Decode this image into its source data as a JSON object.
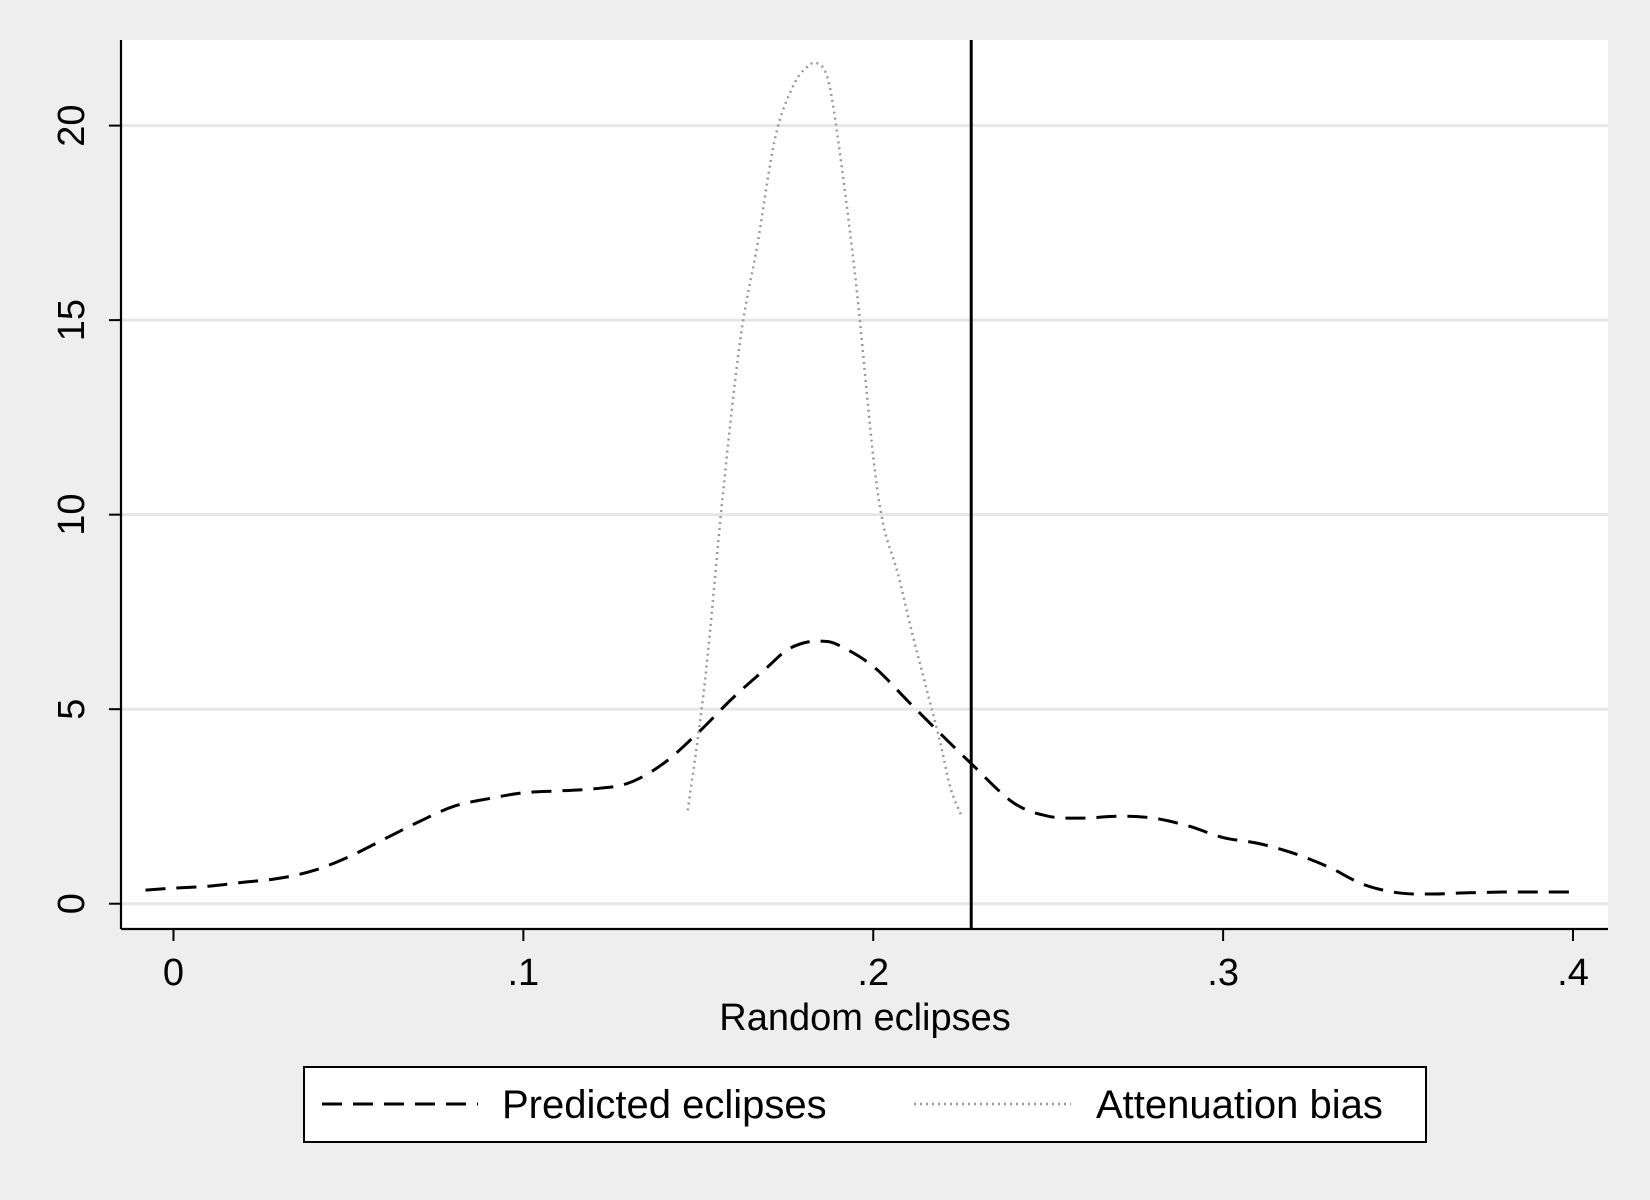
{
  "chart_data": {
    "type": "line",
    "title": "",
    "xlabel": "Random eclipses",
    "ylabel": "",
    "xlim": [
      -0.015,
      0.41
    ],
    "ylim": [
      -0.65,
      22.2
    ],
    "x_ticks": [
      0,
      0.1,
      0.2,
      0.3,
      0.4
    ],
    "x_tick_labels": [
      "0",
      ".1",
      ".2",
      ".3",
      ".4"
    ],
    "y_ticks": [
      0,
      5,
      10,
      15,
      20
    ],
    "y_tick_labels": [
      "0",
      "5",
      "10",
      "15",
      "20"
    ],
    "grid": "horizontal",
    "legend_position": "bottom",
    "reference_line": {
      "x": 0.228
    },
    "series": [
      {
        "name": "Predicted eclipses",
        "style": "dashed",
        "color": "#000000",
        "x": [
          -0.008,
          0.0,
          0.01,
          0.02,
          0.03,
          0.04,
          0.05,
          0.06,
          0.07,
          0.08,
          0.09,
          0.1,
          0.11,
          0.12,
          0.13,
          0.14,
          0.15,
          0.16,
          0.17,
          0.175,
          0.18,
          0.185,
          0.19,
          0.2,
          0.21,
          0.22,
          0.228,
          0.24,
          0.25,
          0.26,
          0.27,
          0.28,
          0.29,
          0.3,
          0.31,
          0.32,
          0.33,
          0.34,
          0.35,
          0.36,
          0.37,
          0.38,
          0.39,
          0.4
        ],
        "y": [
          0.35,
          0.4,
          0.45,
          0.55,
          0.65,
          0.85,
          1.2,
          1.65,
          2.1,
          2.5,
          2.7,
          2.85,
          2.9,
          2.95,
          3.1,
          3.6,
          4.4,
          5.3,
          6.1,
          6.5,
          6.7,
          6.75,
          6.65,
          6.1,
          5.2,
          4.3,
          3.6,
          2.6,
          2.25,
          2.2,
          2.25,
          2.2,
          2.0,
          1.7,
          1.55,
          1.3,
          0.95,
          0.5,
          0.28,
          0.25,
          0.28,
          0.3,
          0.3,
          0.3
        ]
      },
      {
        "name": "Attenuation bias",
        "style": "dotted",
        "color": "#999999",
        "x": [
          0.147,
          0.152,
          0.157,
          0.162,
          0.167,
          0.172,
          0.177,
          0.181,
          0.184,
          0.187,
          0.19,
          0.195,
          0.2,
          0.203,
          0.207,
          0.211,
          0.215,
          0.219,
          0.222,
          0.225
        ],
        "y": [
          2.4,
          5.8,
          10.5,
          14.5,
          17.0,
          19.7,
          21.0,
          21.5,
          21.6,
          21.2,
          19.6,
          16.0,
          11.5,
          9.7,
          8.5,
          7.0,
          5.6,
          4.2,
          3.0,
          2.3
        ]
      }
    ]
  }
}
